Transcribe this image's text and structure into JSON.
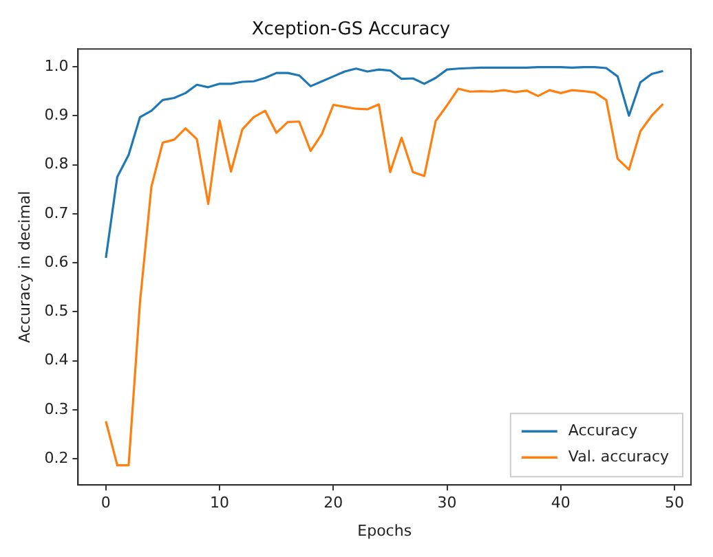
{
  "chart_data": {
    "type": "line",
    "title": "Xception-GS Accuracy",
    "xlabel": "Epochs",
    "ylabel": "Accuracy in decimal",
    "x": [
      0,
      1,
      2,
      3,
      4,
      5,
      6,
      7,
      8,
      9,
      10,
      11,
      12,
      13,
      14,
      15,
      16,
      17,
      18,
      19,
      20,
      21,
      22,
      23,
      24,
      25,
      26,
      27,
      28,
      29,
      30,
      31,
      32,
      33,
      34,
      35,
      36,
      37,
      38,
      39,
      40,
      41,
      42,
      43,
      44,
      45,
      46,
      47,
      48,
      49
    ],
    "series": [
      {
        "name": "Accuracy",
        "color": "#1f77b4",
        "values": [
          0.61,
          0.775,
          0.82,
          0.897,
          0.91,
          0.932,
          0.936,
          0.946,
          0.963,
          0.958,
          0.965,
          0.965,
          0.969,
          0.97,
          0.977,
          0.987,
          0.987,
          0.982,
          0.96,
          0.97,
          0.98,
          0.99,
          0.996,
          0.99,
          0.994,
          0.992,
          0.975,
          0.976,
          0.965,
          0.977,
          0.994,
          0.996,
          0.997,
          0.998,
          0.998,
          0.998,
          0.998,
          0.998,
          0.999,
          0.999,
          0.999,
          0.998,
          0.999,
          0.999,
          0.997,
          0.98,
          0.9,
          0.968,
          0.985,
          0.991
        ]
      },
      {
        "name": "Val. accuracy",
        "color": "#ff7f0e",
        "values": [
          0.277,
          0.187,
          0.187,
          0.52,
          0.755,
          0.845,
          0.851,
          0.874,
          0.852,
          0.72,
          0.89,
          0.786,
          0.872,
          0.897,
          0.91,
          0.865,
          0.887,
          0.888,
          0.828,
          0.863,
          0.922,
          0.918,
          0.914,
          0.913,
          0.923,
          0.785,
          0.855,
          0.785,
          0.777,
          0.889,
          0.921,
          0.955,
          0.949,
          0.95,
          0.949,
          0.952,
          0.948,
          0.951,
          0.94,
          0.952,
          0.946,
          0.952,
          0.95,
          0.947,
          0.932,
          0.812,
          0.79,
          0.868,
          0.9,
          0.924
        ]
      }
    ],
    "xlim": [
      -2.45,
      51.45
    ],
    "xticks": [
      0,
      10,
      20,
      30,
      40,
      50
    ],
    "ylim": [
      0.147,
      1.036
    ],
    "yticks": [
      0.2,
      0.3,
      0.4,
      0.5,
      0.6,
      0.7,
      0.8,
      0.9,
      {
        "value": 1,
        "label": "1.0"
      }
    ],
    "grid": false,
    "legend": "bottom right",
    "marker": "none",
    "line_style": "solid"
  }
}
